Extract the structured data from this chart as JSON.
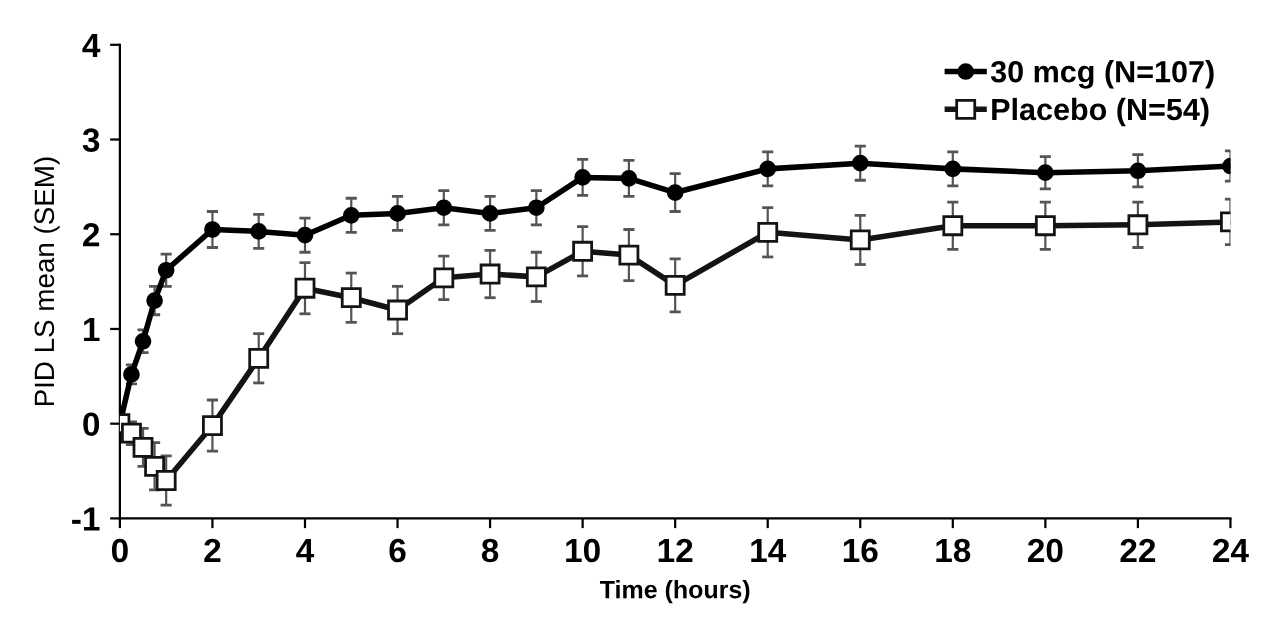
{
  "chart_data": {
    "type": "line",
    "xlabel": "Time (hours)",
    "ylabel": "PID LS mean (SEM)",
    "xlim": [
      0,
      24
    ],
    "ylim": [
      -1,
      4
    ],
    "xticks": [
      0,
      2,
      4,
      6,
      8,
      10,
      12,
      14,
      16,
      18,
      20,
      22,
      24
    ],
    "yticks": [
      -1,
      0,
      1,
      2,
      3,
      4
    ],
    "legend": "top right",
    "grid": false,
    "line_style": "solid",
    "series": [
      {
        "name": "30 mcg (N=107)",
        "color": "#000000",
        "marker": "circle",
        "x": [
          0,
          0.25,
          0.5,
          0.75,
          1,
          2,
          3,
          4,
          5,
          6,
          7,
          8,
          9,
          10,
          11,
          12,
          14,
          16,
          18,
          20,
          22,
          24
        ],
        "values": [
          0,
          0.52,
          0.87,
          1.3,
          1.62,
          2.05,
          2.03,
          1.99,
          2.2,
          2.22,
          2.28,
          2.22,
          2.28,
          2.6,
          2.59,
          2.44,
          2.69,
          2.75,
          2.69,
          2.65,
          2.67,
          2.72
        ],
        "errors": [
          0,
          0.1,
          0.12,
          0.15,
          0.17,
          0.19,
          0.18,
          0.18,
          0.18,
          0.18,
          0.18,
          0.18,
          0.18,
          0.19,
          0.19,
          0.2,
          0.18,
          0.18,
          0.18,
          0.17,
          0.17,
          0.16
        ]
      },
      {
        "name": "Placebo (N=54)",
        "color": "#141414",
        "marker": "square",
        "x": [
          0,
          0.25,
          0.5,
          0.75,
          1,
          2,
          3,
          4,
          5,
          6,
          7,
          8,
          9,
          10,
          11,
          12,
          14,
          16,
          18,
          20,
          22,
          24
        ],
        "values": [
          0,
          -0.1,
          -0.25,
          -0.45,
          -0.6,
          -0.02,
          0.69,
          1.43,
          1.33,
          1.2,
          1.54,
          1.58,
          1.55,
          1.82,
          1.78,
          1.46,
          2.02,
          1.94,
          2.09,
          2.09,
          2.1,
          2.13
        ],
        "errors": [
          0,
          0.12,
          0.2,
          0.25,
          0.26,
          0.27,
          0.26,
          0.27,
          0.26,
          0.25,
          0.23,
          0.25,
          0.26,
          0.26,
          0.27,
          0.28,
          0.26,
          0.26,
          0.25,
          0.25,
          0.24,
          0.24
        ]
      }
    ]
  }
}
